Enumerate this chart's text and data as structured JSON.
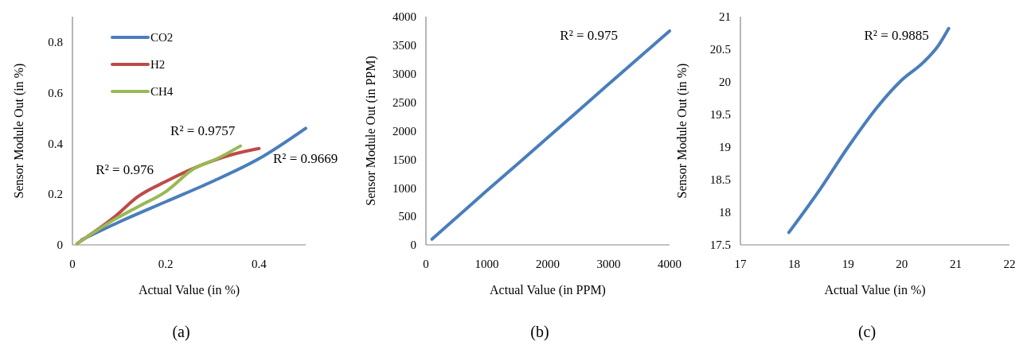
{
  "chart_data": [
    {
      "type": "line",
      "xlabel": "Actual Value (in %)",
      "ylabel": "Sensor Module Out (in %)",
      "xlim": [
        0,
        0.5
      ],
      "xticks": [
        0,
        0.2,
        0.4
      ],
      "ylim": [
        0,
        0.9
      ],
      "yticks": [
        0,
        0.2,
        0.4,
        0.6,
        0.8
      ],
      "grid": false,
      "legend": "top left",
      "marker": "none",
      "line_style": "solid",
      "series": [
        {
          "name": "CO2",
          "color": "#4a7ebb",
          "x": [
            0.02,
            0.1,
            0.2,
            0.3,
            0.4,
            0.5
          ],
          "values": [
            0.02,
            0.09,
            0.17,
            0.25,
            0.34,
            0.46
          ]
        },
        {
          "name": "H2",
          "color": "#be4b48",
          "x": [
            0.01,
            0.09,
            0.14,
            0.2,
            0.27,
            0.34,
            0.4
          ],
          "values": [
            0.005,
            0.11,
            0.19,
            0.25,
            0.31,
            0.355,
            0.38
          ]
        },
        {
          "name": "CH4",
          "color": "#98b954",
          "x": [
            0.01,
            0.09,
            0.14,
            0.2,
            0.26,
            0.31,
            0.36
          ],
          "values": [
            0.005,
            0.1,
            0.15,
            0.21,
            0.3,
            0.34,
            0.39
          ]
        }
      ],
      "annotations": [
        "R² = 0.976",
        "R² = 0.9757",
        "R² = 0.9669",
        "(a)"
      ]
    },
    {
      "type": "line",
      "xlabel": "Actual Value (in PPM)",
      "ylabel": "Sensor Module Out (in PPM)",
      "xlim": [
        0,
        4000
      ],
      "xticks": [
        0,
        1000,
        2000,
        3000,
        4000
      ],
      "ylim": [
        0,
        4000
      ],
      "yticks": [
        0,
        500,
        1000,
        1500,
        2000,
        2500,
        3000,
        3500,
        4000
      ],
      "grid": false,
      "marker": "none",
      "line_style": "solid",
      "series": [
        {
          "color": "#4a7ebb",
          "x": [
            100,
            1000,
            2000,
            3000,
            4000
          ],
          "values": [
            100,
            950,
            1880,
            2820,
            3750
          ]
        }
      ],
      "annotations": [
        "R² = 0.975",
        "(b)"
      ]
    },
    {
      "type": "line",
      "xlabel": "Actual Value (in %)",
      "ylabel": "Sensor Module Out (in %)",
      "xlim": [
        17,
        22
      ],
      "xticks": [
        17,
        18,
        19,
        20,
        21,
        22
      ],
      "ylim": [
        17.5,
        21
      ],
      "yticks": [
        17.5,
        18,
        18.5,
        19,
        19.5,
        20,
        20.5,
        21
      ],
      "grid": false,
      "marker": "none",
      "line_style": "solid",
      "series": [
        {
          "color": "#4a7ebb",
          "x": [
            17.9,
            18.47,
            19.0,
            19.55,
            20.0,
            20.4,
            20.68,
            20.87
          ],
          "values": [
            17.69,
            18.34,
            19.0,
            19.62,
            20.03,
            20.3,
            20.56,
            20.82
          ]
        }
      ],
      "annotations": [
        "R² = 0.9885",
        "(c)"
      ]
    }
  ]
}
